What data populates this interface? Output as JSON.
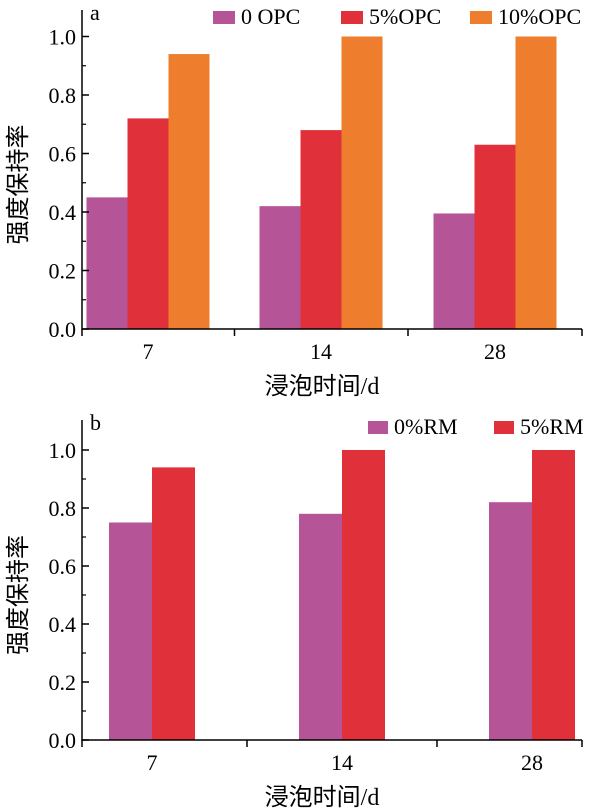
{
  "colors": {
    "purple": "#B55496",
    "red": "#E0313A",
    "orange": "#EF7D2E"
  },
  "chart_data": [
    {
      "type": "bar",
      "panel_label": "a",
      "categories": [
        "7",
        "14",
        "28"
      ],
      "series": [
        {
          "name": "0 OPC",
          "color": "#B55496",
          "values": [
            0.45,
            0.42,
            0.395
          ]
        },
        {
          "name": "5%OPC",
          "color": "#E0313A",
          "values": [
            0.72,
            0.68,
            0.63
          ]
        },
        {
          "name": "10%OPC",
          "color": "#EF7D2E",
          "values": [
            0.94,
            1.0,
            1.0
          ]
        }
      ],
      "xlabel": "浸泡时间/d",
      "ylabel": "强度保持率",
      "ylim": [
        0,
        1.1
      ],
      "yticks": [
        "0.0",
        "0.2",
        "0.4",
        "0.6",
        "0.8",
        "1.0"
      ],
      "legend_position": "top-right",
      "grid": false
    },
    {
      "type": "bar",
      "panel_label": "b",
      "categories": [
        "7",
        "14",
        "28"
      ],
      "series": [
        {
          "name": "0%RM",
          "color": "#B55496",
          "values": [
            0.75,
            0.78,
            0.82
          ]
        },
        {
          "name": "5%RM",
          "color": "#E0313A",
          "values": [
            0.94,
            1.0,
            1.0
          ]
        }
      ],
      "xlabel": "浸泡时间/d",
      "ylabel": "强度保持率",
      "ylim": [
        0,
        1.1
      ],
      "yticks": [
        "0.0",
        "0.2",
        "0.4",
        "0.6",
        "0.8",
        "1.0"
      ],
      "legend_position": "top-right",
      "grid": false
    }
  ]
}
